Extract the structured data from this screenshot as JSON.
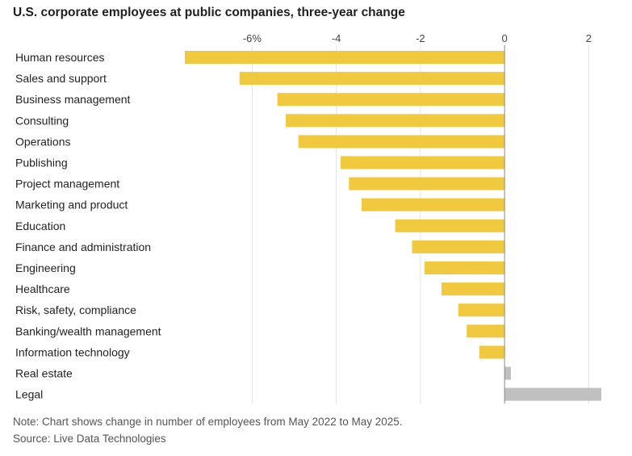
{
  "chart_data": {
    "type": "bar",
    "orientation": "horizontal",
    "title": "U.S. corporate employees at public companies, three-year change",
    "xlabel": "",
    "ylabel": "",
    "categories": [
      "Human resources",
      "Sales and support",
      "Business management",
      "Consulting",
      "Operations",
      "Publishing",
      "Project management",
      "Marketing and product",
      "Education",
      "Finance and administration",
      "Engineering",
      "Healthcare",
      "Risk, safety, compliance",
      "Banking/wealth management",
      "Information technology",
      "Real estate",
      "Legal"
    ],
    "values": [
      -7.6,
      -6.3,
      -5.4,
      -5.2,
      -4.9,
      -3.9,
      -3.7,
      -3.4,
      -2.6,
      -2.2,
      -1.9,
      -1.5,
      -1.1,
      -0.9,
      -0.6,
      0.15,
      2.3
    ],
    "xlim": [
      -7.6,
      2.3
    ],
    "xticks": [
      {
        "value": -6,
        "label": "-6%"
      },
      {
        "value": -4,
        "label": "-4"
      },
      {
        "value": -2,
        "label": "-2"
      },
      {
        "value": 0,
        "label": "0"
      },
      {
        "value": 2,
        "label": "2"
      }
    ],
    "grid": true,
    "colors": {
      "negative": "#f0c93e",
      "positive": "#c0c0c0",
      "grid": "#e3e3e3",
      "axis": "#888888"
    }
  },
  "note": "Note: Chart shows change in number of employees from May 2022 to May 2025.",
  "source": "Source: Live Data Technologies"
}
